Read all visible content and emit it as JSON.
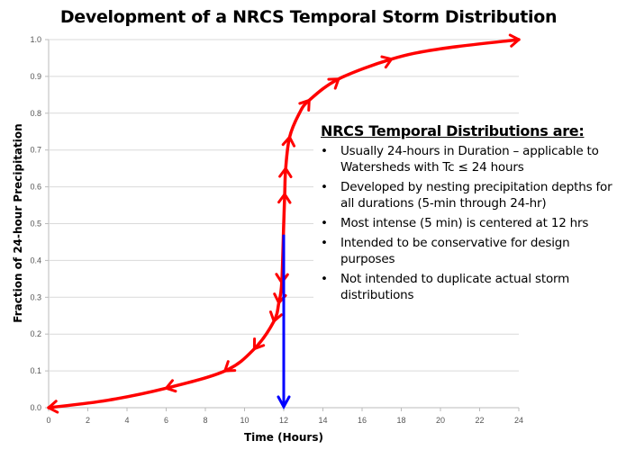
{
  "chart_data": {
    "type": "line",
    "title": "Development of a NRCS Temporal Storm Distribution",
    "xlabel": "Time (Hours)",
    "ylabel": "Fraction of 24-hour Precipitation",
    "xlim": [
      0,
      24
    ],
    "ylim": [
      0,
      1.0
    ],
    "x_ticks": [
      "0",
      "2",
      "4",
      "6",
      "8",
      "10",
      "12",
      "14",
      "16",
      "18",
      "20",
      "22",
      "24"
    ],
    "y_ticks": [
      "0.0",
      "0.1",
      "0.2",
      "0.3",
      "0.4",
      "0.5",
      "0.6",
      "0.7",
      "0.8",
      "0.9",
      "1.0"
    ],
    "grid": "horizontal",
    "series": [
      {
        "color": "#ff0000",
        "x": [
          0,
          3,
          6,
          9,
          10.5,
          11.5,
          11.75,
          11.9,
          12,
          12.05,
          12.1,
          12.3,
          12.8,
          13.3,
          14.8,
          17.5,
          20,
          24
        ],
        "y": [
          0,
          0.02,
          0.053,
          0.1,
          0.16,
          0.235,
          0.285,
          0.34,
          0.5,
          0.58,
          0.65,
          0.735,
          0.8,
          0.835,
          0.893,
          0.947,
          0.975,
          1.0
        ],
        "arrows_toward_origin_at_x": [
          0,
          6,
          9,
          10.5,
          11.5,
          11.75,
          11.9
        ],
        "arrows_forward_at_x": [
          12.05,
          12.1,
          12.3,
          13.3,
          14.8,
          17.5,
          24
        ]
      }
    ],
    "annotations": [
      {
        "type": "arrow",
        "color": "#0000ff",
        "x": 12,
        "y_from": 0.47,
        "y_to": 0
      }
    ]
  },
  "textbox": {
    "heading": "NRCS Temporal Distributions are:",
    "bullets": [
      "Usually 24-hours in Duration – applicable to Watersheds with Tc ≤ 24 hours",
      "Developed by nesting precipitation depths for all durations (5-min through 24-hr)",
      "Most intense (5 min) is centered at 12 hrs",
      "Intended to be conservative for design purposes",
      "Not intended to duplicate actual storm distributions"
    ]
  }
}
